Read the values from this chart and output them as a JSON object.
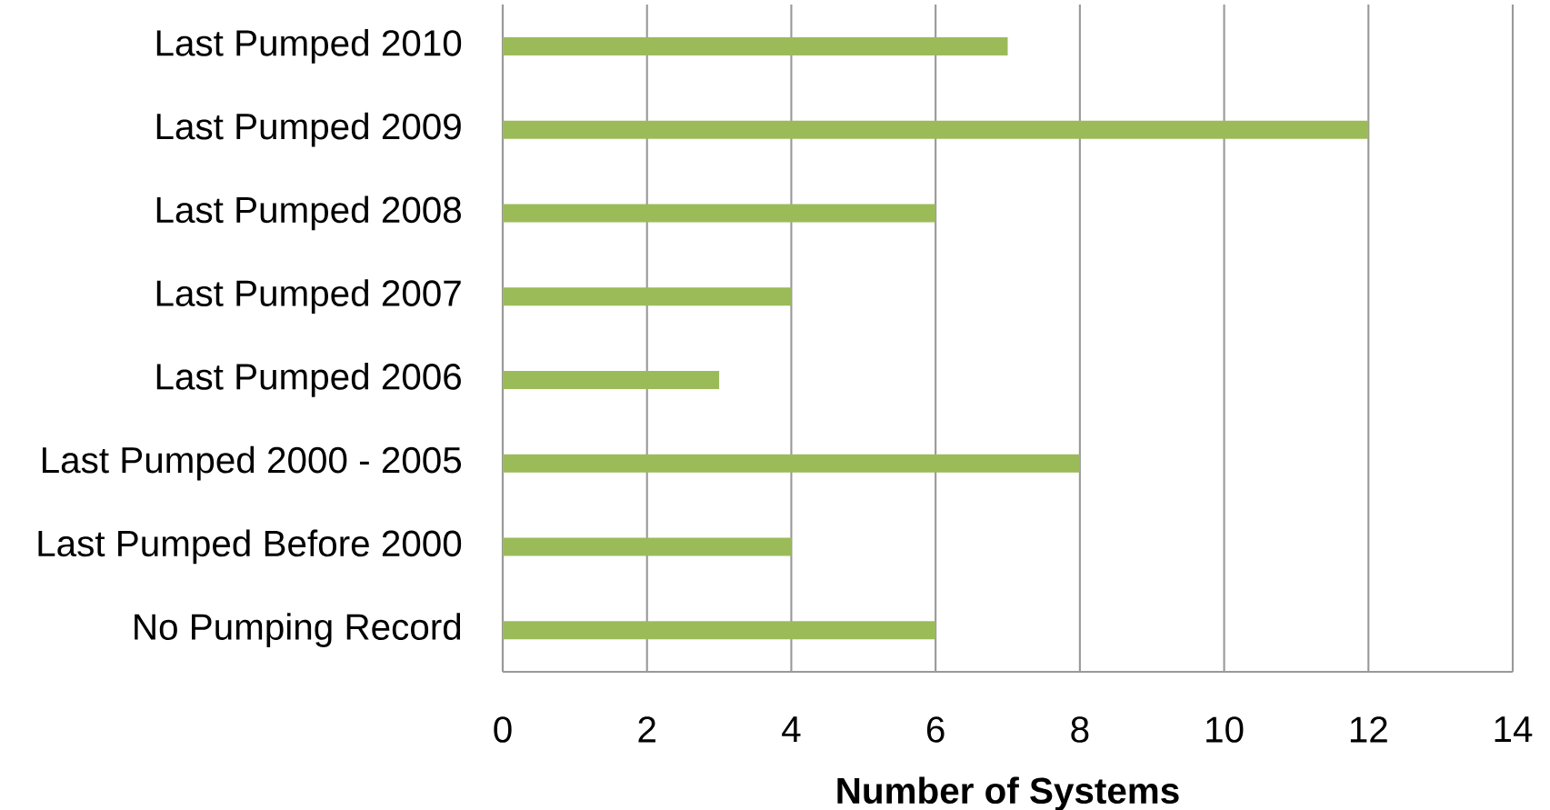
{
  "chart_data": {
    "type": "bar",
    "orientation": "horizontal",
    "xlabel": "Number of Systems",
    "categories": [
      "Last Pumped 2010",
      "Last Pumped 2009",
      "Last Pumped 2008",
      "Last Pumped 2007",
      "Last Pumped 2006",
      "Last Pumped 2000 - 2005",
      "Last Pumped Before 2000",
      "No Pumping Record"
    ],
    "values": [
      7,
      12,
      6,
      4,
      3,
      8,
      4,
      6
    ],
    "color": "#9bbb59",
    "xlim": [
      0,
      14
    ],
    "xticks": [
      0,
      2,
      4,
      6,
      8,
      10,
      12,
      14
    ],
    "grid": "x"
  }
}
